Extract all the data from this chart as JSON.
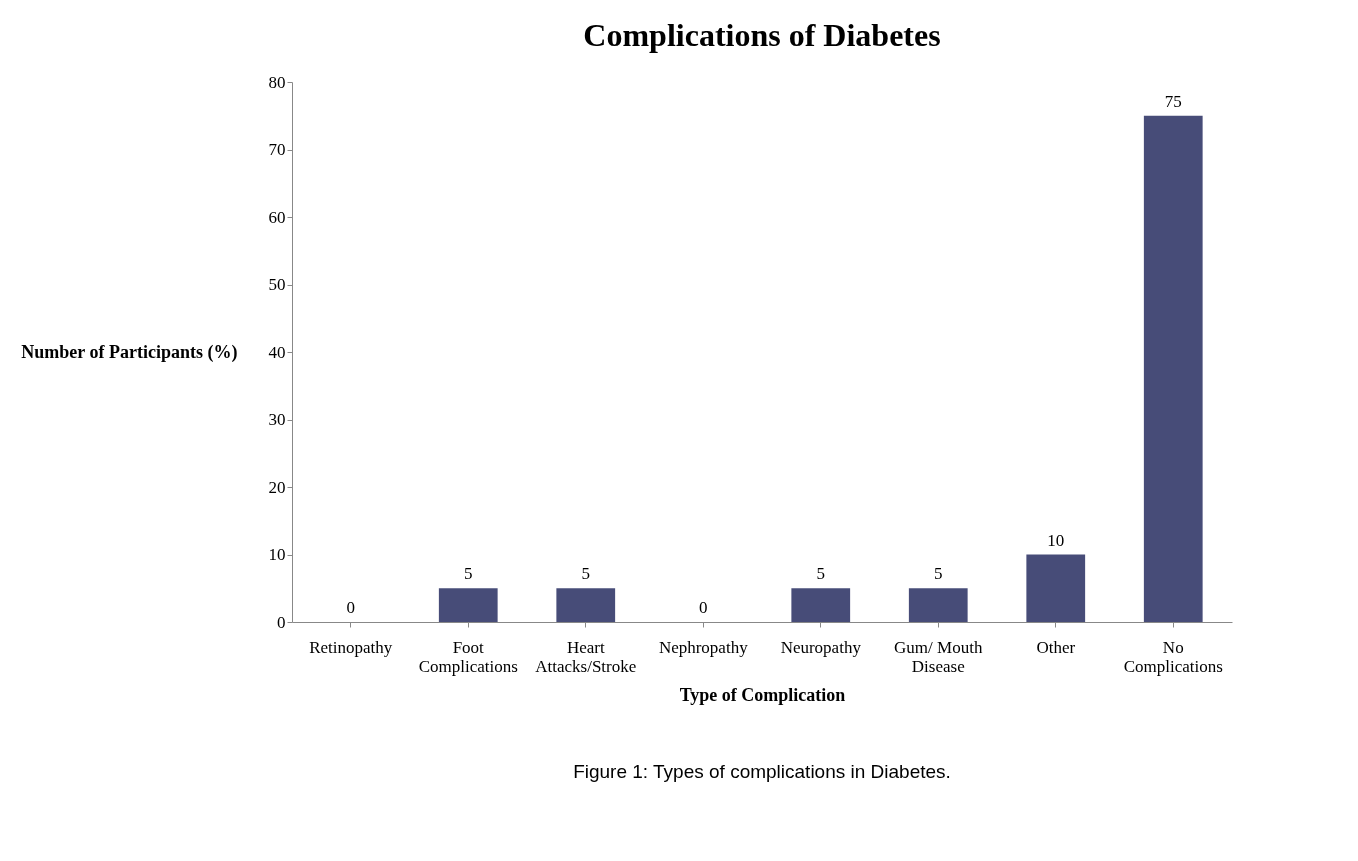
{
  "chart_data": {
    "type": "bar",
    "title": "Complications of Diabetes",
    "xlabel": "Type  of Complication",
    "ylabel": "Number of Participants (%)",
    "categories": [
      "Retinopathy",
      "Foot Complications",
      "Heart Attacks/Stroke",
      "Nephropathy",
      "Neuropathy",
      "Gum/ Mouth Disease",
      "Other",
      "No Complications"
    ],
    "values": [
      0,
      5,
      5,
      0,
      5,
      5,
      10,
      75
    ],
    "color": "#474c78",
    "ylim": [
      0,
      80
    ],
    "yticks": [
      0,
      10,
      20,
      30,
      40,
      50,
      60,
      70,
      80
    ],
    "grid": false,
    "data_labels": true,
    "annotations": [
      "Figure 1: Types of complications in Diabetes."
    ]
  }
}
